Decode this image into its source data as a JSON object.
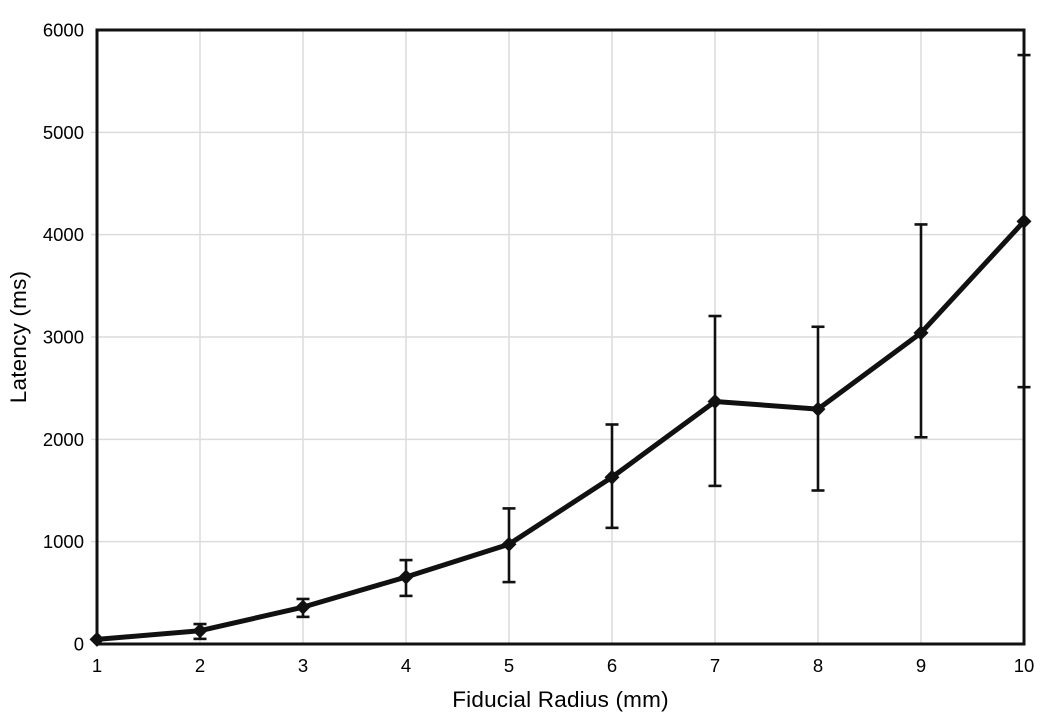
{
  "chart_data": {
    "type": "line",
    "title": "",
    "xlabel": "Fiducial Radius (mm)",
    "ylabel": "Latency (ms)",
    "x": [
      1,
      2,
      3,
      4,
      5,
      6,
      7,
      8,
      9,
      10
    ],
    "x_tick_labels": [
      "1",
      "2",
      "3",
      "4",
      "5",
      "6",
      "7",
      "8",
      "9",
      "10"
    ],
    "y_ticks": [
      0,
      1000,
      2000,
      3000,
      4000,
      5000,
      6000
    ],
    "xlim": [
      1,
      10
    ],
    "ylim": [
      0,
      6000
    ],
    "grid": true,
    "legend": "none",
    "marker": "diamond",
    "colors": {
      "line": "#111111",
      "grid": "#dcdcdc",
      "text": "#000000",
      "background": "#ffffff"
    },
    "series": [
      {
        "name": "Latency",
        "values": [
          45,
          130,
          360,
          655,
          975,
          1630,
          2370,
          2295,
          3040,
          4130
        ],
        "error_plus": [
          0,
          65,
          80,
          165,
          350,
          515,
          835,
          805,
          1060,
          1625
        ],
        "error_minus": [
          0,
          80,
          95,
          185,
          370,
          495,
          825,
          795,
          1020,
          1620
        ]
      }
    ]
  }
}
